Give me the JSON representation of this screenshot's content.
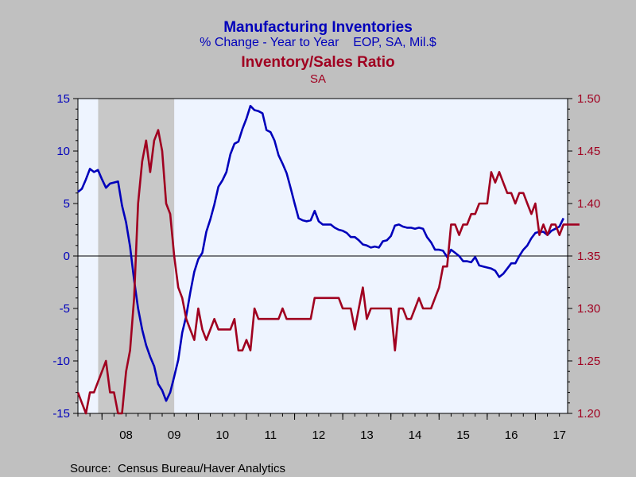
{
  "chart_data": {
    "type": "line",
    "title_left": "Manufacturing Inventories",
    "subtitle_left": "% Change - Year to Year    EOP, SA, Mil.$",
    "title_right": "Inventory/Sales Ratio",
    "subtitle_right": "SA",
    "source": "Source:  Census Bureau/Haver Analytics",
    "colors": {
      "left_series": "#0000bb",
      "right_series": "#a00020",
      "title_left": "#0000bb",
      "title_right": "#a00020",
      "plot_bg": "#eef4ff",
      "recession": "#c8c8c8",
      "outer_bg": "#c0c0c0"
    },
    "x_range": [
      2007.5,
      2017.67
    ],
    "x_ticks": [
      "08",
      "09",
      "10",
      "11",
      "12",
      "13",
      "14",
      "15",
      "16",
      "17"
    ],
    "y_left": {
      "range": [
        -15,
        15
      ],
      "ticks": [
        "15",
        "10",
        "5",
        "0",
        "-5",
        "-10",
        "-15"
      ]
    },
    "y_right": {
      "range": [
        1.2,
        1.5
      ],
      "ticks": [
        "1.50",
        "1.45",
        "1.40",
        "1.35",
        "1.30",
        "1.25",
        "1.20"
      ]
    },
    "recession_shading": [
      2007.92,
      2009.5
    ],
    "zero_line": 0,
    "series": [
      {
        "name": "Manufacturing Inventories",
        "axis": "left",
        "start": 2007.5,
        "step_months": 1,
        "values": [
          6.1,
          6.4,
          7.3,
          8.3,
          8.0,
          8.2,
          7.3,
          6.5,
          6.9,
          7.0,
          7.1,
          4.8,
          3.2,
          0.9,
          -2.3,
          -5.0,
          -7.0,
          -8.5,
          -9.6,
          -10.5,
          -12.2,
          -12.8,
          -13.8,
          -13.0,
          -11.5,
          -9.9,
          -7.3,
          -5.7,
          -3.5,
          -1.5,
          -0.3,
          0.3,
          2.3,
          3.5,
          4.9,
          6.6,
          7.2,
          8.0,
          9.7,
          10.7,
          10.9,
          12.1,
          13.1,
          14.3,
          13.9,
          13.8,
          13.6,
          12.0,
          11.8,
          11.0,
          9.6,
          8.8,
          7.9,
          6.5,
          5.0,
          3.6,
          3.4,
          3.3,
          3.4,
          4.3,
          3.3,
          3.0,
          3.0,
          3.0,
          2.7,
          2.5,
          2.4,
          2.2,
          1.8,
          1.8,
          1.5,
          1.1,
          1.0,
          0.8,
          0.9,
          0.8,
          1.4,
          1.5,
          1.9,
          2.9,
          3.0,
          2.8,
          2.7,
          2.7,
          2.6,
          2.7,
          2.6,
          1.8,
          1.3,
          0.6,
          0.6,
          0.5,
          -0.1,
          0.6,
          0.3,
          0.0,
          -0.5,
          -0.5,
          -0.6,
          -0.1,
          -0.9,
          -1.0,
          -1.1,
          -1.2,
          -1.4,
          -2.0,
          -1.7,
          -1.2,
          -0.7,
          -0.7,
          0.0,
          0.6,
          1.0,
          1.7,
          2.2,
          2.3,
          2.3,
          2.0,
          2.4,
          2.6,
          2.8,
          3.6
        ]
      },
      {
        "name": "Inventory/Sales Ratio",
        "axis": "right",
        "start": 2007.5,
        "step_months": 1,
        "values": [
          1.22,
          1.21,
          1.2,
          1.22,
          1.22,
          1.23,
          1.24,
          1.25,
          1.22,
          1.22,
          1.2,
          1.2,
          1.24,
          1.26,
          1.31,
          1.4,
          1.44,
          1.46,
          1.43,
          1.46,
          1.47,
          1.45,
          1.4,
          1.39,
          1.35,
          1.32,
          1.31,
          1.29,
          1.28,
          1.27,
          1.3,
          1.28,
          1.27,
          1.28,
          1.29,
          1.28,
          1.28,
          1.28,
          1.28,
          1.29,
          1.26,
          1.26,
          1.27,
          1.26,
          1.3,
          1.29,
          1.29,
          1.29,
          1.29,
          1.29,
          1.29,
          1.3,
          1.29,
          1.29,
          1.29,
          1.29,
          1.29,
          1.29,
          1.29,
          1.31,
          1.31,
          1.31,
          1.31,
          1.31,
          1.31,
          1.31,
          1.3,
          1.3,
          1.3,
          1.28,
          1.3,
          1.32,
          1.29,
          1.3,
          1.3,
          1.3,
          1.3,
          1.3,
          1.3,
          1.26,
          1.3,
          1.3,
          1.29,
          1.29,
          1.3,
          1.31,
          1.3,
          1.3,
          1.3,
          1.31,
          1.32,
          1.34,
          1.34,
          1.38,
          1.38,
          1.37,
          1.38,
          1.38,
          1.39,
          1.39,
          1.4,
          1.4,
          1.4,
          1.43,
          1.42,
          1.43,
          1.42,
          1.41,
          1.41,
          1.4,
          1.41,
          1.41,
          1.4,
          1.39,
          1.4,
          1.37,
          1.38,
          1.37,
          1.38,
          1.38,
          1.37,
          1.38,
          1.38,
          1.38,
          1.38,
          1.38
        ]
      }
    ]
  }
}
